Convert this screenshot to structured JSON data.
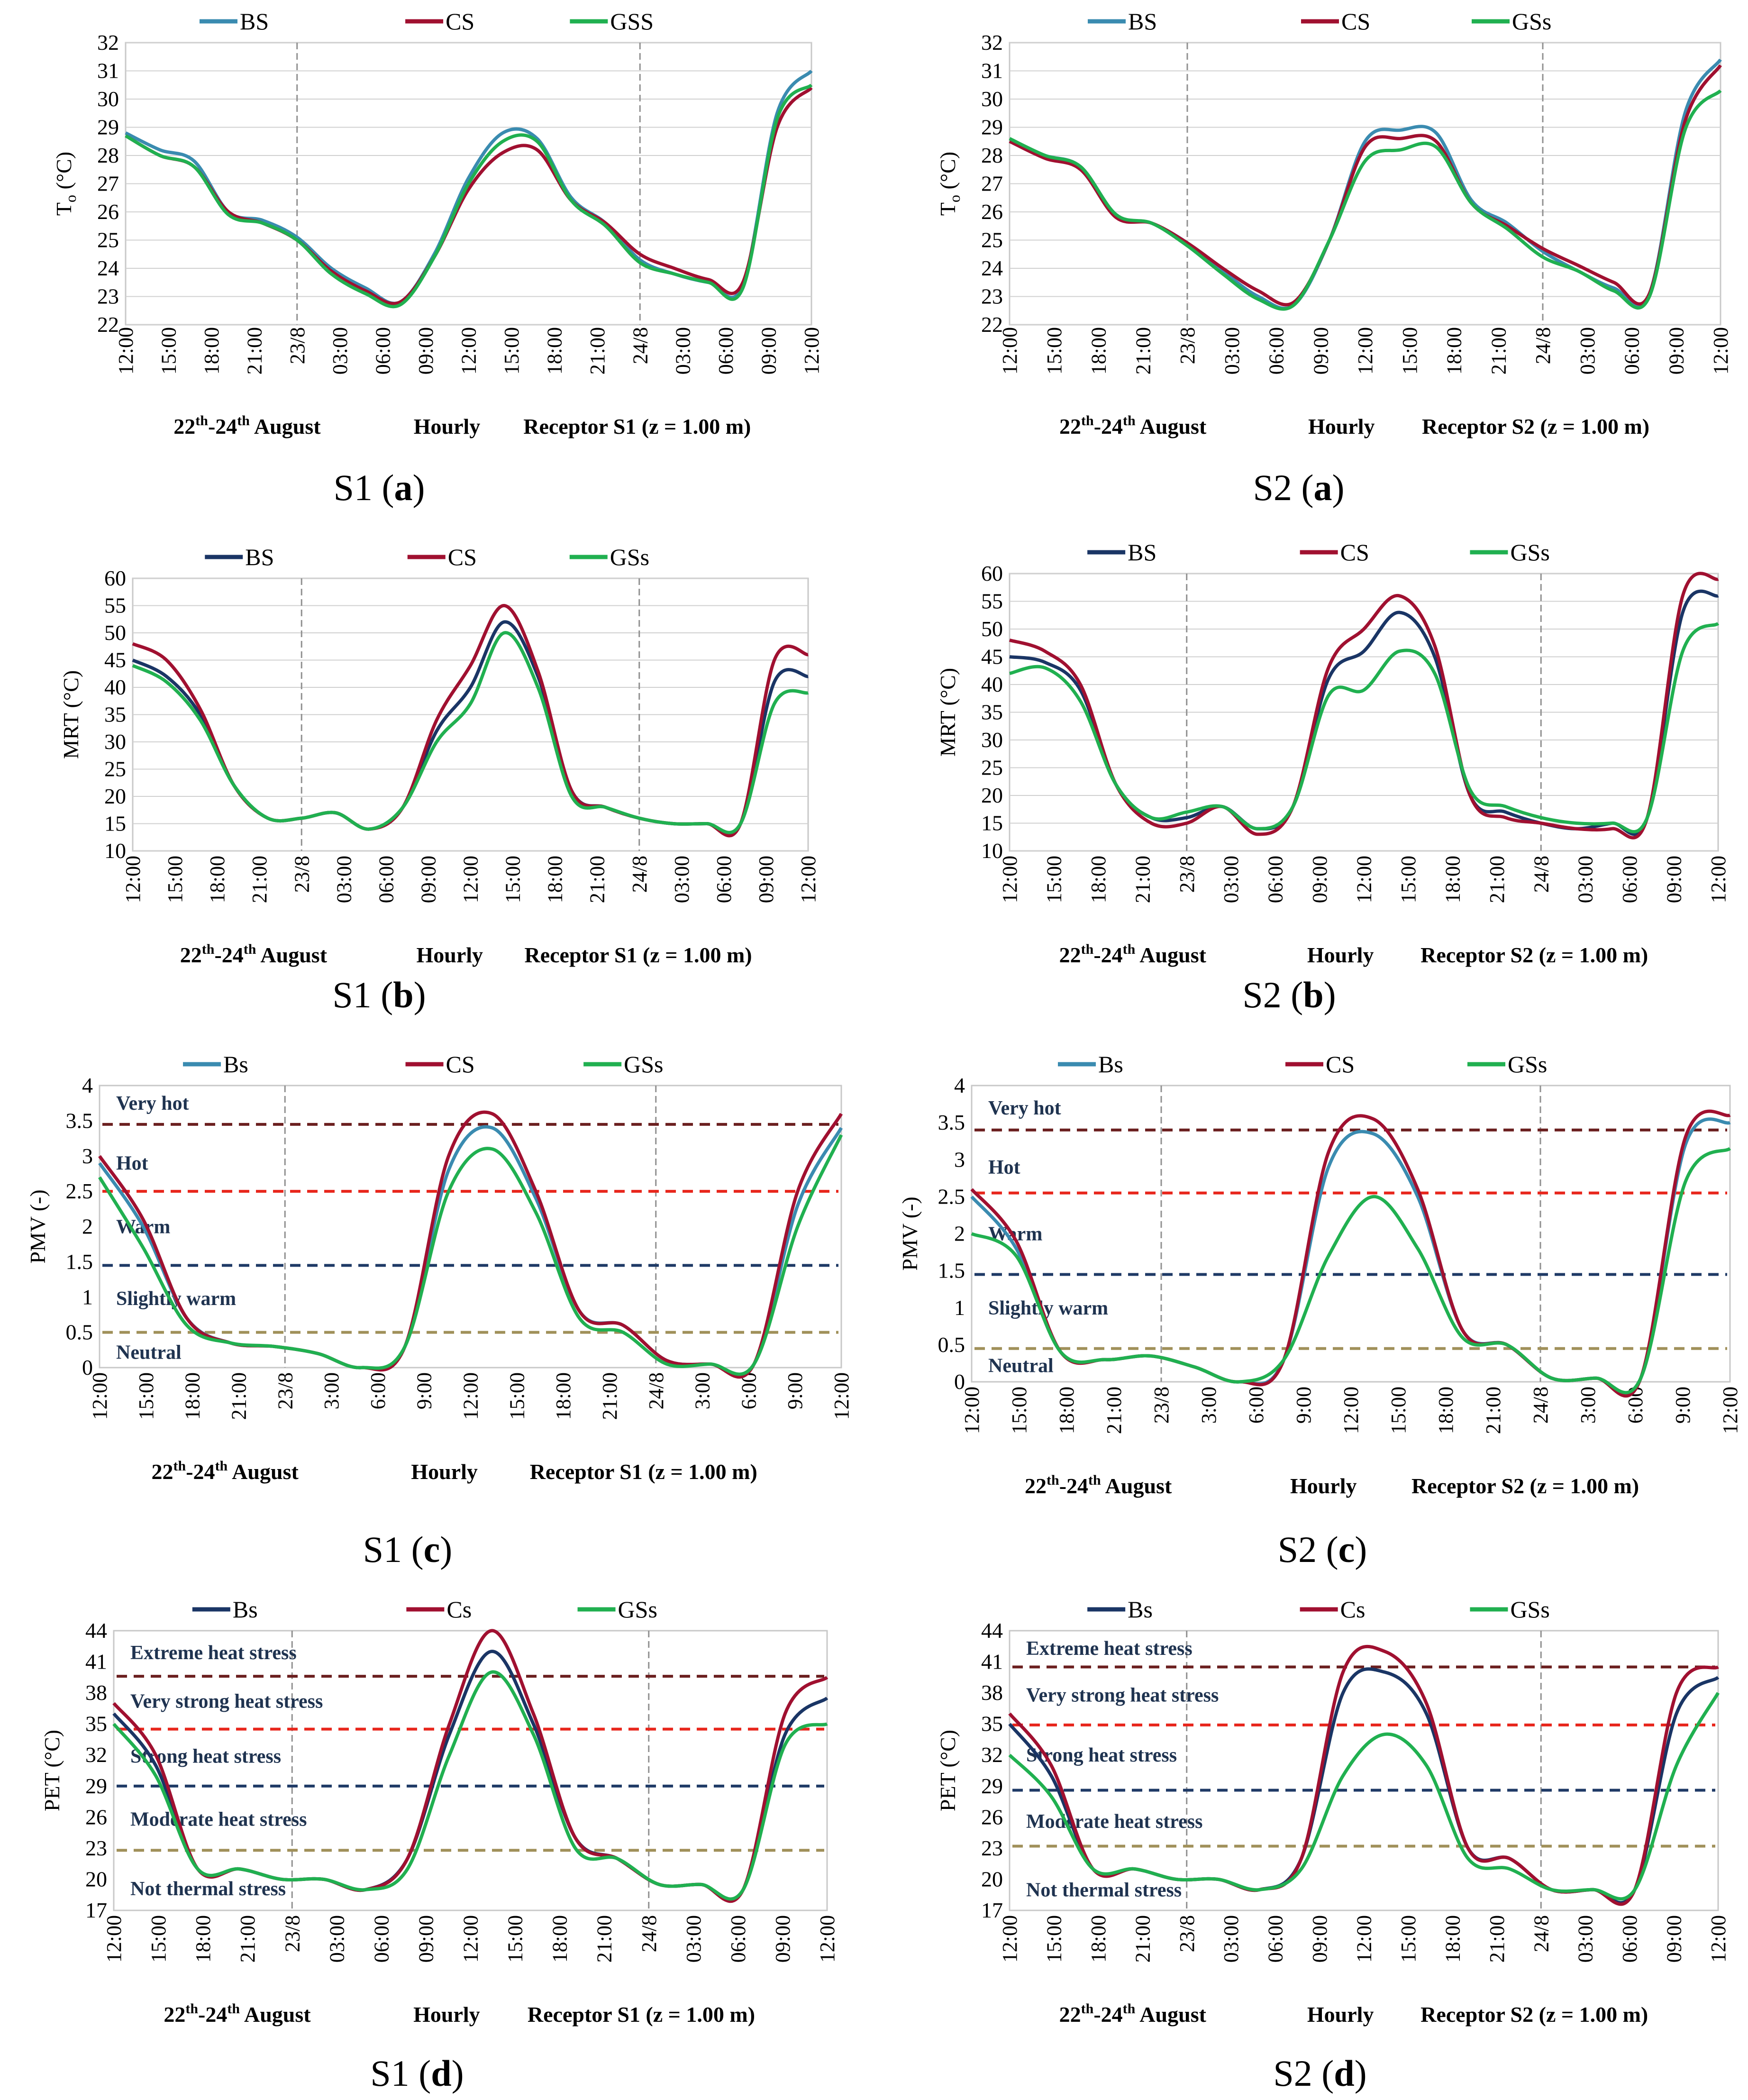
{
  "colors": {
    "bs_a": "#3a8bb0",
    "cs": "#a01030",
    "gs": "#20b050",
    "bs_b": "#1a3565",
    "bs_c": "#3a8bb0",
    "bs_d": "#1a3565",
    "grid": "#d0d0d0",
    "divider": "#909090",
    "veryhot": "#6b1f1f",
    "hot": "#e8261c",
    "warm": "#1f3a66",
    "neutral": "#a0905a"
  },
  "x_ticks": [
    "12:00",
    "15:00",
    "18:00",
    "21:00",
    "23/8",
    "03:00",
    "06:00",
    "09:00",
    "12:00",
    "15:00",
    "18:00",
    "21:00",
    "24/8",
    "03:00",
    "06:00",
    "09:00",
    "12:00"
  ],
  "x_ticks_short": [
    "12:00",
    "15:00",
    "18:00",
    "21:00",
    "23/8",
    "3:00",
    "6:00",
    "9:00",
    "12:00",
    "15:00",
    "18:00",
    "21:00",
    "24/8",
    "3:00",
    "6:00",
    "9:00",
    "12:00"
  ],
  "footer": {
    "dates": "22",
    "dates_sup": "th",
    "dates_mid": "-24",
    "dates_sup2": "th",
    "dates_end": " August",
    "hourly": "Hourly",
    "receptor_s1": "Receptor S1 (z = 1.00 m)",
    "receptor_s2": "Receptor S2 (z = 1.00 m)"
  },
  "captions": [
    {
      "site": "S1",
      "letter": "a"
    },
    {
      "site": "S2",
      "letter": "a"
    },
    {
      "site": "S1",
      "letter": "b"
    },
    {
      "site": "S2",
      "letter": "b"
    },
    {
      "site": "S1",
      "letter": "c"
    },
    {
      "site": "S2",
      "letter": "c"
    },
    {
      "site": "S1",
      "letter": "d"
    },
    {
      "site": "S2",
      "letter": "d"
    }
  ],
  "chart_data": [
    {
      "id": "S1a",
      "type": "line",
      "ylabel": "T",
      "ylabel_sub": "o",
      "ylabel_unit": " (°C)",
      "ylim": [
        22,
        32
      ],
      "yticks": [
        22,
        23,
        24,
        25,
        26,
        27,
        28,
        29,
        30,
        31,
        32
      ],
      "legend": [
        "BS",
        "CS",
        "GSS"
      ],
      "series": [
        {
          "name": "BS",
          "values": [
            28.8,
            28.2,
            27.8,
            26.0,
            25.7,
            25.1,
            24.0,
            23.3,
            22.8,
            24.5,
            27.2,
            28.8,
            28.6,
            26.5,
            25.6,
            24.3,
            23.8,
            23.5,
            23.4,
            29.5,
            31.0
          ]
        },
        {
          "name": "CS",
          "values": [
            28.7,
            28.0,
            27.6,
            26.0,
            25.6,
            25.0,
            23.9,
            23.2,
            22.8,
            24.4,
            26.8,
            28.1,
            28.2,
            26.4,
            25.6,
            24.5,
            24.0,
            23.6,
            23.5,
            29.0,
            30.4
          ]
        },
        {
          "name": "GSS",
          "values": [
            28.7,
            28.0,
            27.6,
            25.9,
            25.6,
            25.0,
            23.8,
            23.1,
            22.7,
            24.4,
            27.0,
            28.5,
            28.5,
            26.4,
            25.5,
            24.2,
            23.8,
            23.5,
            23.3,
            29.3,
            30.5
          ]
        }
      ]
    },
    {
      "id": "S2a",
      "type": "line",
      "ylabel": "T",
      "ylabel_sub": "o",
      "ylabel_unit": " (°C)",
      "ylim": [
        22,
        32
      ],
      "yticks": [
        22,
        23,
        24,
        25,
        26,
        27,
        28,
        29,
        30,
        31,
        32
      ],
      "legend": [
        "BS",
        "CS",
        "GSs"
      ],
      "series": [
        {
          "name": "BS",
          "values": [
            28.5,
            28.0,
            27.6,
            25.9,
            25.6,
            24.9,
            23.9,
            23.0,
            22.7,
            25.0,
            28.5,
            28.9,
            28.8,
            26.4,
            25.6,
            24.6,
            23.9,
            23.3,
            23.1,
            29.5,
            31.4
          ]
        },
        {
          "name": "CS",
          "values": [
            28.5,
            27.9,
            27.5,
            25.8,
            25.6,
            24.9,
            24.0,
            23.2,
            22.8,
            25.0,
            28.3,
            28.6,
            28.5,
            26.3,
            25.5,
            24.7,
            24.1,
            23.5,
            23.1,
            29.2,
            31.2
          ]
        },
        {
          "name": "GSs",
          "values": [
            28.6,
            28.0,
            27.6,
            25.9,
            25.6,
            24.8,
            23.8,
            22.9,
            22.7,
            25.0,
            27.8,
            28.2,
            28.3,
            26.3,
            25.4,
            24.4,
            23.9,
            23.2,
            23.0,
            28.9,
            30.3
          ]
        }
      ]
    },
    {
      "id": "S1b",
      "type": "line",
      "ylabel": "MRT (°C)",
      "ylim": [
        10,
        60
      ],
      "yticks": [
        10,
        15,
        20,
        25,
        30,
        35,
        40,
        45,
        50,
        55,
        60
      ],
      "legend": [
        "BS",
        "CS",
        "GSs"
      ],
      "series": [
        {
          "name": "BS",
          "values": [
            45,
            42,
            35,
            22,
            16,
            16,
            17,
            14,
            18,
            32,
            40,
            52,
            42,
            21,
            18,
            16,
            15,
            15,
            15,
            41,
            42
          ]
        },
        {
          "name": "CS",
          "values": [
            48,
            45,
            36,
            22,
            16,
            16,
            17,
            14,
            18,
            34,
            44,
            55,
            43,
            21,
            18,
            16,
            15,
            15,
            15,
            45,
            46
          ]
        },
        {
          "name": "GSs",
          "values": [
            44,
            41,
            34,
            22,
            16,
            16,
            17,
            14,
            18,
            30,
            37,
            50,
            40,
            20,
            18,
            16,
            15,
            15,
            15,
            37,
            39
          ]
        }
      ]
    },
    {
      "id": "S2b",
      "type": "line",
      "ylabel": "MRT (°C)",
      "ylim": [
        10,
        60
      ],
      "yticks": [
        10,
        15,
        20,
        25,
        30,
        35,
        40,
        45,
        50,
        55,
        60
      ],
      "legend": [
        "BS",
        "CS",
        "GSs"
      ],
      "series": [
        {
          "name": "BS",
          "values": [
            45,
            44,
            39,
            22,
            16,
            16,
            18,
            14,
            18,
            41,
            46,
            53,
            45,
            20,
            17,
            15,
            14,
            15,
            16,
            53,
            56
          ]
        },
        {
          "name": "CS",
          "values": [
            48,
            46,
            40,
            22,
            15,
            15,
            18,
            13,
            18,
            43,
            50,
            56,
            47,
            20,
            16,
            15,
            14,
            14,
            16,
            56,
            59
          ]
        },
        {
          "name": "GSs",
          "values": [
            42,
            43,
            37,
            22,
            16,
            17,
            18,
            14,
            18,
            38,
            39,
            46,
            42,
            21,
            18,
            16,
            15,
            15,
            16,
            46,
            51
          ]
        }
      ]
    },
    {
      "id": "S1c",
      "type": "line",
      "ylabel": "PMV (-)",
      "ylim": [
        0,
        4
      ],
      "yticks": [
        0,
        0.5,
        1,
        1.5,
        2,
        2.5,
        3,
        3.5,
        4
      ],
      "legend": [
        "Bs",
        "CS",
        "GSs"
      ],
      "thresholds": [
        {
          "value": 3.45,
          "label": "Very hot",
          "color_key": "veryhot"
        },
        {
          "value": 2.5,
          "label": "Hot",
          "color_key": "hot"
        },
        {
          "value": 1.45,
          "label": "Warm",
          "color_key": "warm",
          "label_pos": "above"
        },
        {
          "value": 0.5,
          "label": "Slightly warm",
          "color_key": "neutral"
        }
      ],
      "band_labels": [
        {
          "text": "Very hot",
          "y": 3.75
        },
        {
          "text": "Hot",
          "y": 2.9
        },
        {
          "text": "Warm",
          "y": 2.0
        },
        {
          "text": "Slightly warm",
          "y": 0.98
        },
        {
          "text": "Neutral",
          "y": 0.22
        }
      ],
      "series": [
        {
          "name": "Bs",
          "values": [
            2.9,
            2.0,
            0.7,
            0.35,
            0.3,
            0.2,
            0.0,
            0.3,
            2.8,
            3.4,
            2.4,
            0.8,
            0.6,
            0.1,
            0.05,
            0.05,
            2.3,
            3.4
          ]
        },
        {
          "name": "CS",
          "values": [
            3.0,
            2.1,
            0.7,
            0.35,
            0.3,
            0.2,
            0.0,
            0.3,
            3.0,
            3.6,
            2.5,
            0.8,
            0.6,
            0.1,
            0.05,
            0.05,
            2.5,
            3.6
          ]
        },
        {
          "name": "GSs",
          "values": [
            2.7,
            1.7,
            0.6,
            0.35,
            0.3,
            0.2,
            0.0,
            0.3,
            2.5,
            3.1,
            2.2,
            0.7,
            0.5,
            0.05,
            0.05,
            0.05,
            2.0,
            3.3
          ]
        }
      ]
    },
    {
      "id": "S2c",
      "type": "line",
      "ylabel": "PMV (-)",
      "ylim": [
        0,
        4
      ],
      "yticks": [
        0,
        0.5,
        1,
        1.5,
        2,
        2.5,
        3,
        3.5,
        4
      ],
      "legend": [
        "Bs",
        "CS",
        "GSs"
      ],
      "thresholds": [
        {
          "value": 3.4,
          "label": "Very hot",
          "color_key": "veryhot"
        },
        {
          "value": 2.55,
          "label": "Hot",
          "color_key": "hot"
        },
        {
          "value": 1.45,
          "label": "Warm",
          "color_key": "warm"
        },
        {
          "value": 0.45,
          "label": "Slightly warm",
          "color_key": "neutral"
        }
      ],
      "band_labels": [
        {
          "text": "Very hot",
          "y": 3.7
        },
        {
          "text": "Hot",
          "y": 2.9
        },
        {
          "text": "Warm",
          "y": 2.0
        },
        {
          "text": "Slightly warm",
          "y": 1.0
        },
        {
          "text": "Neutral",
          "y": 0.22
        }
      ],
      "series": [
        {
          "name": "Bs",
          "values": [
            2.5,
            1.8,
            0.4,
            0.3,
            0.35,
            0.2,
            0.0,
            0.3,
            2.9,
            3.35,
            2.5,
            0.7,
            0.5,
            0.05,
            0.05,
            0.05,
            3.2,
            3.5
          ]
        },
        {
          "name": "CS",
          "values": [
            2.6,
            1.9,
            0.4,
            0.3,
            0.35,
            0.2,
            0.0,
            0.3,
            3.1,
            3.55,
            2.6,
            0.7,
            0.5,
            0.05,
            0.05,
            0.05,
            3.3,
            3.6
          ]
        },
        {
          "name": "GSs",
          "values": [
            2.0,
            1.7,
            0.4,
            0.3,
            0.35,
            0.2,
            0.0,
            0.3,
            1.7,
            2.5,
            1.8,
            0.6,
            0.5,
            0.05,
            0.05,
            0.05,
            2.7,
            3.15
          ]
        }
      ]
    },
    {
      "id": "S1d",
      "type": "line",
      "ylabel": "PET (°C)",
      "ylim": [
        17,
        44
      ],
      "yticks": [
        17,
        20,
        23,
        26,
        29,
        32,
        35,
        38,
        41,
        44
      ],
      "legend": [
        "Bs",
        "Cs",
        "GSs"
      ],
      "thresholds": [
        {
          "value": 39.6,
          "color_key": "veryhot"
        },
        {
          "value": 34.5,
          "color_key": "hot"
        },
        {
          "value": 29.0,
          "color_key": "warm"
        },
        {
          "value": 22.8,
          "color_key": "neutral"
        }
      ],
      "band_labels": [
        {
          "text": "Extreme heat stress",
          "y": 41.9
        },
        {
          "text": "Very strong heat stress",
          "y": 37.2
        },
        {
          "text": "Strong heat stress",
          "y": 31.9
        },
        {
          "text": "Moderate heat stress",
          "y": 25.8
        },
        {
          "text": "Not thermal stress",
          "y": 19.1
        }
      ],
      "series": [
        {
          "name": "Bs",
          "values": [
            36,
            31,
            21,
            21,
            20,
            20,
            19,
            22,
            34,
            42,
            35,
            24,
            22,
            19.5,
            19.5,
            19,
            34,
            37.5
          ]
        },
        {
          "name": "Cs",
          "values": [
            37,
            32,
            21,
            21,
            20,
            20,
            19,
            22,
            35,
            44,
            36,
            24,
            22,
            19.5,
            19.5,
            19,
            36,
            39.5
          ]
        },
        {
          "name": "GSs",
          "values": [
            35,
            30,
            21,
            21,
            20,
            20,
            19,
            21,
            32,
            40,
            34,
            23,
            22,
            19.5,
            19.5,
            19,
            33,
            35
          ]
        }
      ]
    },
    {
      "id": "S2d",
      "type": "line",
      "ylabel": "PET (°C)",
      "ylim": [
        17,
        44
      ],
      "yticks": [
        17,
        20,
        23,
        26,
        29,
        32,
        35,
        38,
        41,
        44
      ],
      "legend": [
        "Bs",
        "Cs",
        "GSs"
      ],
      "thresholds": [
        {
          "value": 40.5,
          "color_key": "veryhot"
        },
        {
          "value": 34.9,
          "color_key": "hot"
        },
        {
          "value": 28.6,
          "color_key": "warm"
        },
        {
          "value": 23.2,
          "color_key": "neutral"
        }
      ],
      "band_labels": [
        {
          "text": "Extreme heat stress",
          "y": 42.3
        },
        {
          "text": "Very strong heat stress",
          "y": 37.8
        },
        {
          "text": "Strong heat stress",
          "y": 32.0
        },
        {
          "text": "Moderate heat stress",
          "y": 25.6
        },
        {
          "text": "Not thermal stress",
          "y": 19.0
        }
      ],
      "series": [
        {
          "name": "Bs",
          "values": [
            35,
            30,
            21,
            21,
            20,
            20,
            19,
            22,
            38,
            40,
            36,
            23,
            22,
            19,
            19,
            19,
            36,
            39.5
          ]
        },
        {
          "name": "Cs",
          "values": [
            36,
            31,
            21,
            21,
            20,
            20,
            19,
            22,
            40,
            42,
            37,
            23,
            22,
            19,
            19,
            19,
            38,
            40.5
          ]
        },
        {
          "name": "GSs",
          "values": [
            32,
            28,
            21,
            21,
            20,
            20,
            19,
            21,
            30,
            34,
            31,
            22,
            21,
            19,
            19,
            19,
            31,
            38
          ]
        }
      ]
    }
  ]
}
